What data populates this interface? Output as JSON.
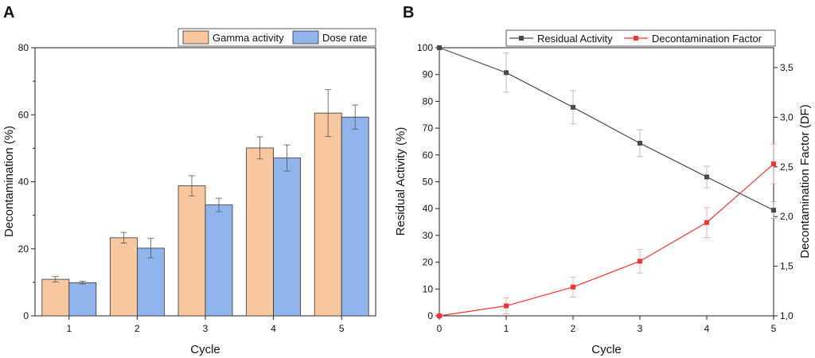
{
  "chart_data": [
    {
      "panel": "A",
      "type": "bar",
      "categories": [
        "1",
        "2",
        "3",
        "4",
        "5"
      ],
      "series": [
        {
          "name": "Gamma activity",
          "color": "#f9c79e",
          "values": [
            10.9,
            23.3,
            38.8,
            50.1,
            60.5
          ],
          "errors": [
            0.8,
            1.6,
            3.0,
            3.3,
            7.0
          ]
        },
        {
          "name": "Dose rate",
          "color": "#8fb5ec",
          "values": [
            9.9,
            20.2,
            33.1,
            47.1,
            59.3
          ],
          "errors": [
            0.4,
            2.9,
            2.0,
            3.9,
            3.6
          ]
        }
      ],
      "xlabel": "Cycle",
      "ylabel": "Decontamination (%)",
      "ylim": [
        0,
        80
      ],
      "yticks": [
        "0",
        "20",
        "40",
        "60",
        "80"
      ],
      "legend": "top-right"
    },
    {
      "panel": "B",
      "type": "line",
      "x": [
        0,
        1,
        2,
        3,
        4,
        5
      ],
      "xticks": [
        "0",
        "1",
        "2",
        "3",
        "4",
        "5"
      ],
      "series": [
        {
          "name": "Residual Activity",
          "color": "#4a4a4a",
          "axis": "left",
          "values": [
            100,
            90.7,
            77.8,
            64.4,
            51.8,
            39.4
          ],
          "errors": [
            0,
            7.3,
            6.2,
            5.0,
            4.0,
            3.1
          ]
        },
        {
          "name": "Decontamination Factor",
          "color": "#ff3030",
          "axis": "right",
          "values": [
            1.0,
            1.1,
            1.29,
            1.55,
            1.94,
            2.53
          ],
          "errors": [
            0,
            0.08,
            0.1,
            0.12,
            0.15,
            0.2
          ]
        }
      ],
      "xlabel": "Cycle",
      "ylabel": "Residual Activity (%)",
      "ylim": [
        0,
        100
      ],
      "yticks": [
        "0",
        "10",
        "20",
        "30",
        "40",
        "50",
        "60",
        "70",
        "80",
        "90",
        "100"
      ],
      "y2label": "Decontamination Factor (DF)",
      "y2lim": [
        1.0,
        3.7
      ],
      "y2ticks": [
        {
          "v": 1.0,
          "label": "1,0"
        },
        {
          "v": 1.5,
          "label": "1,5"
        },
        {
          "v": 2.0,
          "label": "2,0"
        },
        {
          "v": 2.5,
          "label": "2,5"
        },
        {
          "v": 3.0,
          "label": "3,0"
        },
        {
          "v": 3.5,
          "label": "3,5"
        }
      ],
      "legend": "top"
    }
  ]
}
